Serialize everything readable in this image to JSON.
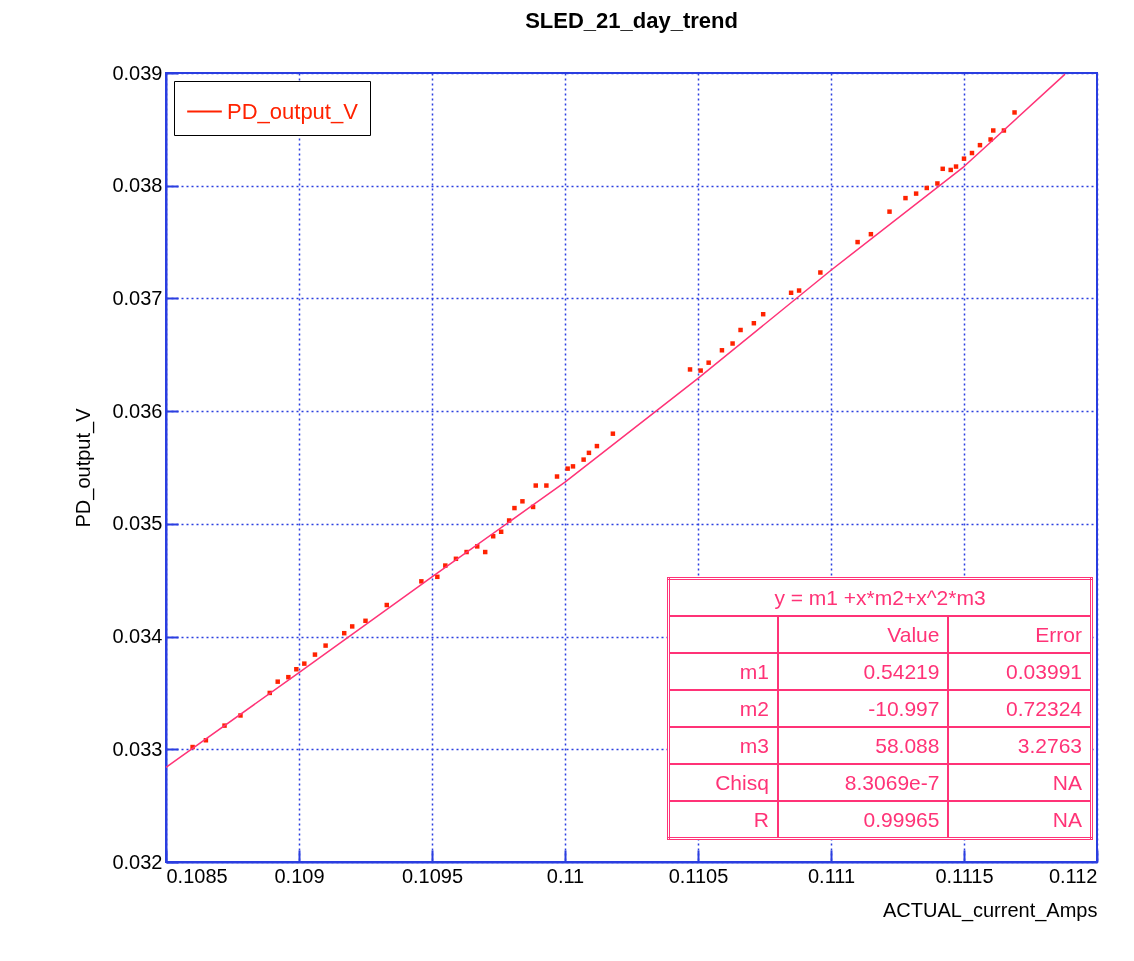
{
  "chart_data": {
    "type": "scatter",
    "title": "SLED_21_day_trend",
    "xlabel": "ACTUAL_current_Amps",
    "ylabel": "PD_output_V",
    "xlim": [
      0.1085,
      0.112
    ],
    "ylim": [
      0.032,
      0.039
    ],
    "xticks": [
      0.1085,
      0.109,
      0.1095,
      0.11,
      0.1105,
      0.111,
      0.1115,
      0.112
    ],
    "yticks": [
      0.032,
      0.033,
      0.034,
      0.035,
      0.036,
      0.037,
      0.038,
      0.039
    ],
    "grid": true,
    "legend": "top left",
    "annotations": [
      "y = m1 +x*m2+x^2*m3",
      "Value",
      "Error",
      "m1",
      "0.54219",
      "0.03991",
      "m2",
      "-10.997",
      "0.72324",
      "m3",
      "58.088",
      "3.2763",
      "Chisq",
      "8.3069e-7",
      "NA",
      "R",
      "0.99965",
      "NA"
    ],
    "series": [
      {
        "name": "PD_output_V",
        "marker": "square",
        "color": "#ff2200",
        "x": [
          0.1086,
          0.10865,
          0.10872,
          0.10878,
          0.10889,
          0.10892,
          0.10896,
          0.10899,
          0.10902,
          0.10906,
          0.1091,
          0.10917,
          0.1092,
          0.10925,
          0.10933,
          0.10946,
          0.10952,
          0.10955,
          0.10959,
          0.10963,
          0.10967,
          0.1097,
          0.10973,
          0.10976,
          0.10979,
          0.10981,
          0.10984,
          0.10988,
          0.10989,
          0.10993,
          0.10997,
          0.11001,
          0.11003,
          0.11007,
          0.11009,
          0.11012,
          0.11018,
          0.11047,
          0.11051,
          0.11054,
          0.11059,
          0.11063,
          0.11066,
          0.11071,
          0.110745,
          0.11085,
          0.11088,
          0.11096,
          0.1111,
          0.11115,
          0.11122,
          0.11128,
          0.11132,
          0.11136,
          0.1114,
          0.11142,
          0.11145,
          0.11147,
          0.1115,
          0.11153,
          0.11156,
          0.1116,
          0.11161,
          0.11165,
          0.11169
        ],
        "values": [
          0.03302,
          0.03308,
          0.03321,
          0.0333,
          0.0335,
          0.0336,
          0.03364,
          0.03371,
          0.03376,
          0.03384,
          0.03392,
          0.03403,
          0.03409,
          0.03414,
          0.03428,
          0.03449,
          0.03453,
          0.03463,
          0.03469,
          0.03475,
          0.0348,
          0.03475,
          0.03489,
          0.03493,
          0.03503,
          0.03514,
          0.0352,
          0.03515,
          0.03534,
          0.03534,
          0.03542,
          0.03549,
          0.03551,
          0.03557,
          0.03563,
          0.03569,
          0.0358,
          0.03637,
          0.03636,
          0.03643,
          0.03654,
          0.0366,
          0.03672,
          0.03678,
          0.03686,
          0.03705,
          0.03707,
          0.03723,
          0.0375,
          0.03757,
          0.03777,
          0.03789,
          0.03793,
          0.03798,
          0.03802,
          0.03815,
          0.03814,
          0.03817,
          0.03824,
          0.03829,
          0.03836,
          0.03841,
          0.03849,
          0.03849,
          0.03865
        ]
      },
      {
        "type": "line",
        "color": "#ff3377",
        "line_style": "solid",
        "x": [
          0.1085,
          0.109,
          0.1095,
          0.11,
          0.1105,
          0.111,
          0.1115,
          0.11188
        ],
        "values": [
          0.03284,
          0.03368,
          0.03453,
          0.03537,
          0.03629,
          0.03725,
          0.03817,
          0.03899
        ]
      }
    ]
  }
}
